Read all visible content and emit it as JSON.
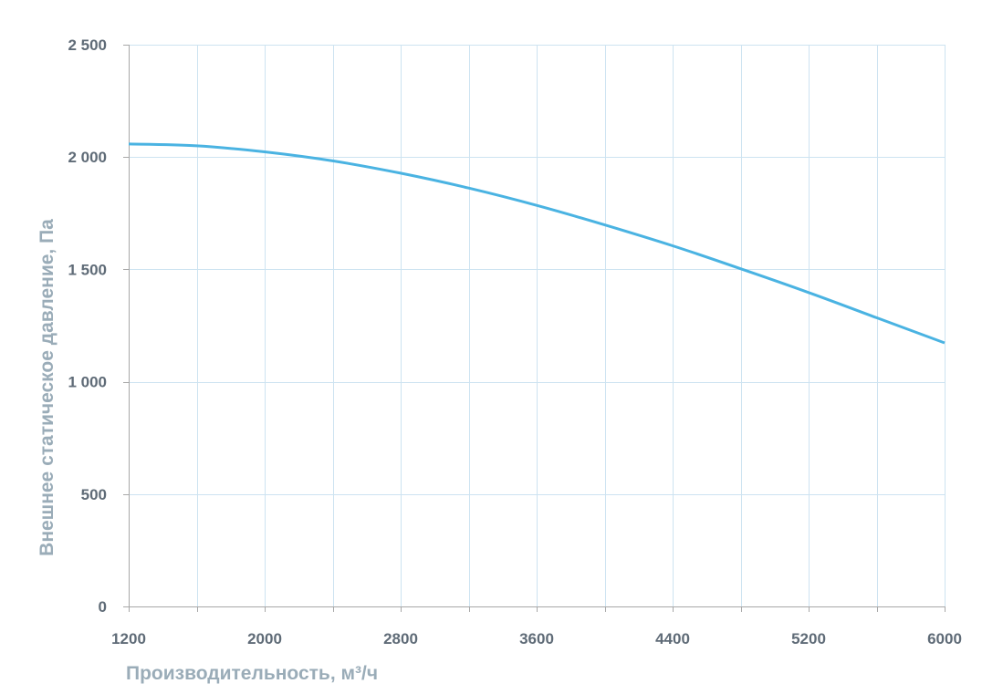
{
  "chart_data": {
    "type": "line",
    "title": "",
    "xlabel": "Производительность, м³/ч",
    "ylabel": "Внешнее  статическое  давление, Па",
    "xlim": [
      1200,
      6000
    ],
    "ylim": [
      0,
      2500
    ],
    "x_ticks": [
      "1200",
      "2000",
      "2800",
      "3600",
      "4400",
      "5200",
      "6000"
    ],
    "x_tick_values": [
      1200,
      2000,
      2800,
      3600,
      4400,
      5200,
      6000
    ],
    "y_ticks": [
      "0",
      "500",
      "1 000",
      "1 500",
      "2 000",
      "2 500"
    ],
    "y_tick_values": [
      0,
      500,
      1000,
      1500,
      2000,
      2500
    ],
    "x_minor_grid_step": 400,
    "grid": true,
    "series_color": "#4ab3e2",
    "grid_color": "#cde3f1",
    "series": [
      {
        "x": [
          1200,
          1600,
          2000,
          2400,
          2800,
          3200,
          3600,
          4000,
          4400,
          4800,
          5200,
          5600,
          6000
        ],
        "values": [
          2058,
          2050,
          2023,
          1983,
          1928,
          1862,
          1785,
          1698,
          1605,
          1503,
          1397,
          1285,
          1173
        ]
      }
    ]
  }
}
